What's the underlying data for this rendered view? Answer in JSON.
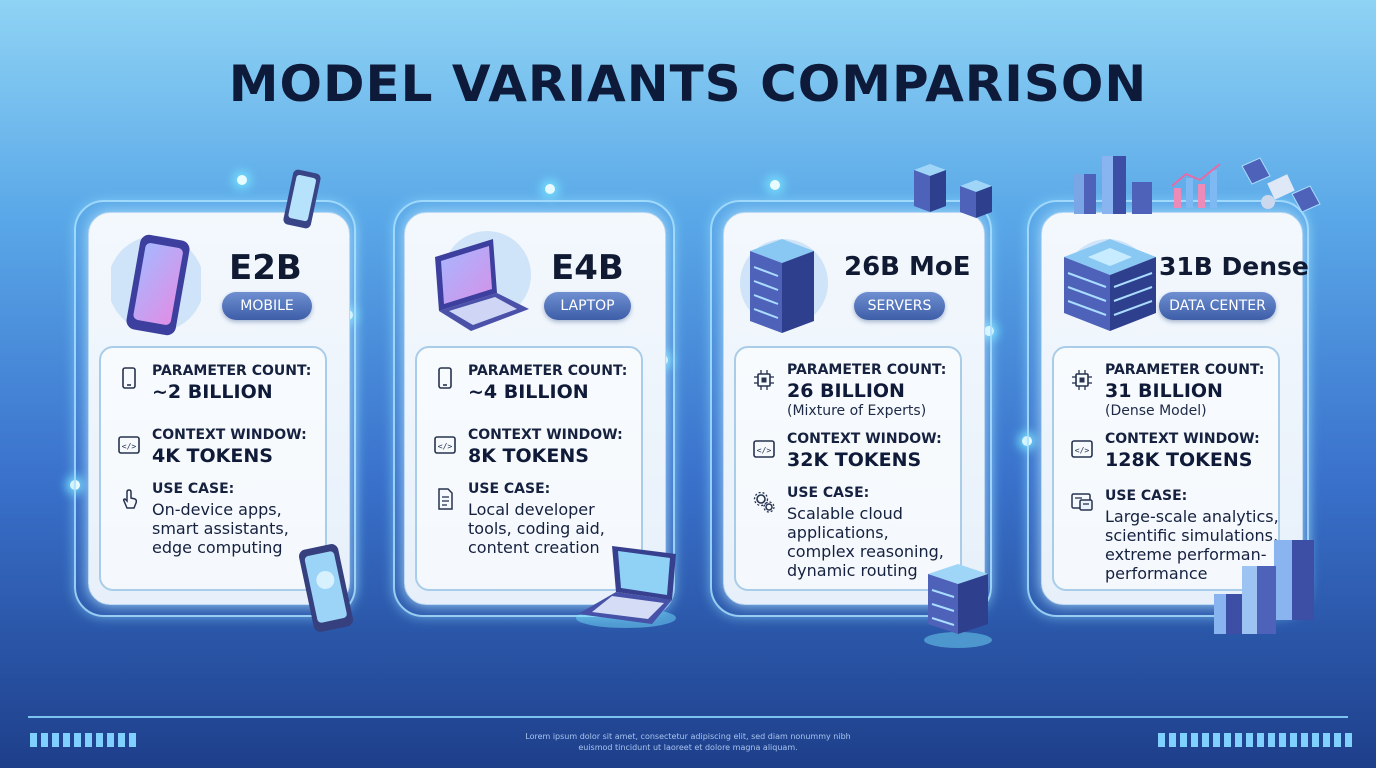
{
  "title": "MODEL VARIANTS COMPARISON",
  "labels": {
    "parameter_count": "PARAMETER COUNT:",
    "context_window": "CONTEXT WINDOW:",
    "use_case": "USE CASE:"
  },
  "cards": [
    {
      "name": "E2B",
      "badge": "MOBILE",
      "device_icon": "smartphone-icon",
      "parameter_value": "~2 BILLION",
      "parameter_note": "",
      "context_value": "4K TOKENS",
      "use_case_lines": [
        "On-device apps,",
        "smart assistants,",
        "edge computing"
      ],
      "param_icon": "phone-outline-icon",
      "use_icon": "touch-hand-icon"
    },
    {
      "name": "E4B",
      "badge": "LAPTOP",
      "device_icon": "laptop-icon",
      "parameter_value": "~4 BILLION",
      "parameter_note": "",
      "context_value": "8K TOKENS",
      "use_case_lines": [
        "Local developer",
        "tools, coding aid,",
        "content creation"
      ],
      "param_icon": "phone-outline-icon",
      "use_icon": "document-icon"
    },
    {
      "name": "26B MoE",
      "badge": "SERVERS",
      "device_icon": "server-rack-icon",
      "parameter_value": "26 BILLION",
      "parameter_note": "(Mixture of Experts)",
      "context_value": "32K TOKENS",
      "use_case_lines": [
        "Scalable cloud",
        "applications,",
        "complex reasoning,",
        "dynamic routing"
      ],
      "param_icon": "chip-icon",
      "use_icon": "gears-icon"
    },
    {
      "name": "31B Dense",
      "badge": "DATA CENTER",
      "device_icon": "data-center-icon",
      "parameter_value": "31 BILLION",
      "parameter_note": "(Dense Model)",
      "context_value": "128K TOKENS",
      "use_case_lines": [
        "Large-scale analytics,",
        "scientific simulations,",
        "extreme performan-",
        "performance"
      ],
      "param_icon": "chip-icon",
      "use_icon": "dashboard-icon"
    }
  ],
  "footer": {
    "line1": "Lorem ipsum dolor sit amet, consectetur adipiscing elit, sed diam nonummy nibh",
    "line2": "euismod tincidunt ut laoreet et dolore magna aliquam."
  },
  "colors": {
    "badge": "#3d5ea8",
    "title": "#0e1a3a",
    "glow": "#7fd0ff"
  }
}
